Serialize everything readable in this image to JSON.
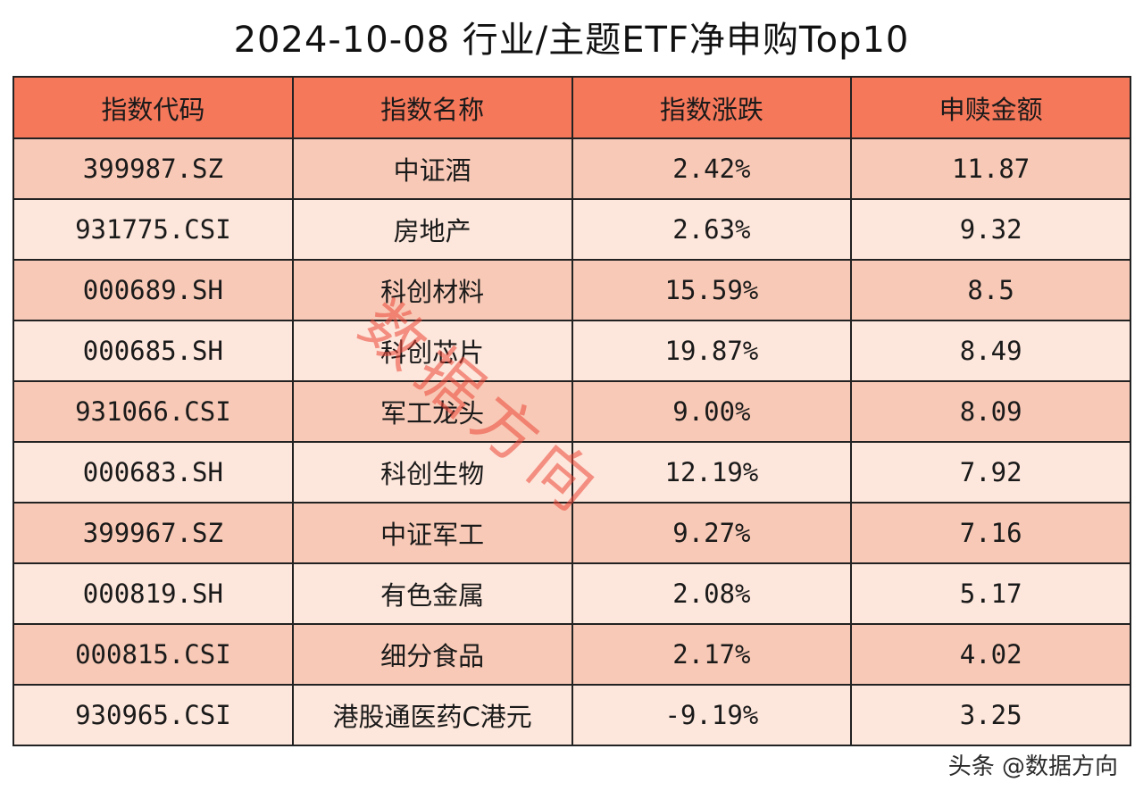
{
  "title": "2024-10-08 行业/主题ETF净申购Top10",
  "headers": [
    "指数代码",
    "指数名称",
    "指数涨跌",
    "申赎金额"
  ],
  "rows": [
    {
      "code": "399987.SZ",
      "name": "中证酒",
      "change": "2.42%",
      "amount": "11.87"
    },
    {
      "code": "931775.CSI",
      "name": "房地产",
      "change": "2.63%",
      "amount": "9.32"
    },
    {
      "code": "000689.SH",
      "name": "科创材料",
      "change": "15.59%",
      "amount": "8.5"
    },
    {
      "code": "000685.SH",
      "name": "科创芯片",
      "change": "19.87%",
      "amount": "8.49"
    },
    {
      "code": "931066.CSI",
      "name": "军工龙头",
      "change": "9.00%",
      "amount": "8.09"
    },
    {
      "code": "000683.SH",
      "name": "科创生物",
      "change": "12.19%",
      "amount": "7.92"
    },
    {
      "code": "399967.SZ",
      "name": "中证军工",
      "change": "9.27%",
      "amount": "7.16"
    },
    {
      "code": "000819.SH",
      "name": "有色金属",
      "change": "2.08%",
      "amount": "5.17"
    },
    {
      "code": "000815.CSI",
      "name": "细分食品",
      "change": "2.17%",
      "amount": "4.02"
    },
    {
      "code": "930965.CSI",
      "name": "港股通医药C港元",
      "change": "-9.19%",
      "amount": "3.25"
    }
  ],
  "watermark": "数据方向",
  "credit": "头条 @数据方向",
  "colors": {
    "header_bg": "#f5785b",
    "row_odd": "#f8c9b6",
    "row_even": "#fde6db",
    "watermark": "#eb4637"
  }
}
